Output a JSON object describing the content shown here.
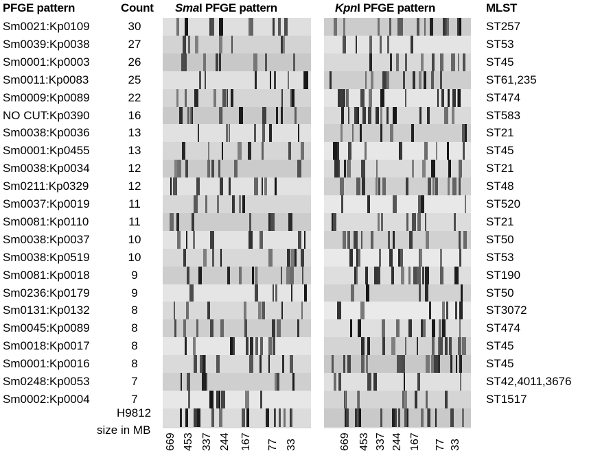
{
  "headers": {
    "pattern": "PFGE pattern",
    "count": "Count",
    "smai_enzyme": "Sma",
    "smai_suffix": "I PFGE pattern",
    "kpni_enzyme": "Kpn",
    "kpni_suffix": "I PFGE pattern",
    "mlst": "MLST"
  },
  "rows": [
    {
      "pattern": "Sm0021:Kp0109",
      "count": "30",
      "mlst": "ST257"
    },
    {
      "pattern": "Sm0039:Kp0038",
      "count": "27",
      "mlst": "ST53"
    },
    {
      "pattern": "Sm0001:Kp0003",
      "count": "26",
      "mlst": "ST45"
    },
    {
      "pattern": "Sm0011:Kp0083",
      "count": "25",
      "mlst": "ST61,235"
    },
    {
      "pattern": "Sm0009:Kp0089",
      "count": "22",
      "mlst": "ST474"
    },
    {
      "pattern": "NO CUT:Kp0390",
      "count": "16",
      "mlst": "ST583"
    },
    {
      "pattern": "Sm0038:Kp0036",
      "count": "13",
      "mlst": "ST21"
    },
    {
      "pattern": "Sm0001:Kp0455",
      "count": "13",
      "mlst": "ST45"
    },
    {
      "pattern": "Sm0038:Kp0034",
      "count": "12",
      "mlst": "ST21"
    },
    {
      "pattern": "Sm0211:Kp0329",
      "count": "12",
      "mlst": "ST48"
    },
    {
      "pattern": "Sm0037:Kp0019",
      "count": "11",
      "mlst": "ST520"
    },
    {
      "pattern": "Sm0081:Kp0110",
      "count": "11",
      "mlst": "ST21"
    },
    {
      "pattern": "Sm0038:Kp0037",
      "count": "10",
      "mlst": "ST50"
    },
    {
      "pattern": "Sm0038:Kp0519",
      "count": "10",
      "mlst": "ST53"
    },
    {
      "pattern": "Sm0081:Kp0018",
      "count": "9",
      "mlst": "ST190"
    },
    {
      "pattern": "Sm0236:Kp0179",
      "count": "9",
      "mlst": "ST50"
    },
    {
      "pattern": "Sm0131:Kp0132",
      "count": "8",
      "mlst": "ST3072"
    },
    {
      "pattern": "Sm0045:Kp0089",
      "count": "8",
      "mlst": "ST474"
    },
    {
      "pattern": "Sm0018:Kp0017",
      "count": "8",
      "mlst": "ST45"
    },
    {
      "pattern": "Sm0001:Kp0016",
      "count": "8",
      "mlst": "ST45"
    },
    {
      "pattern": "Sm0248:Kp0053",
      "count": "7",
      "mlst": "ST42,4011,3676"
    },
    {
      "pattern": "Sm0002:Kp0004",
      "count": "7",
      "mlst": "ST1517"
    }
  ],
  "ladder": {
    "name": "H9812",
    "size_label": "size in MB",
    "smai_ticks": [
      "669",
      "453",
      "337",
      "244",
      "167",
      "77",
      "33"
    ],
    "kpni_ticks": [
      "669",
      "453",
      "337",
      "244",
      "167",
      "77",
      "33"
    ]
  }
}
